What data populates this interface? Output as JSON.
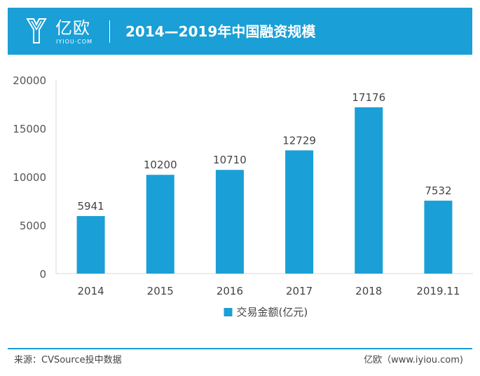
{
  "header": {
    "logo_text": "亿欧",
    "logo_sub": "IYIOU·COM",
    "title": "2014—2019年中国融资规模",
    "brand_color": "#1a9fd6"
  },
  "chart_data": {
    "type": "bar",
    "categories": [
      "2014",
      "2015",
      "2016",
      "2017",
      "2018",
      "2019.11"
    ],
    "series": [
      {
        "name": "交易金额(亿元)",
        "values": [
          5941,
          10200,
          10710,
          12729,
          17176,
          7532
        ],
        "color": "#1a9fd6"
      }
    ],
    "ylim": [
      0,
      20000
    ],
    "yticks": [
      0,
      5000,
      10000,
      15000,
      20000
    ],
    "title": "",
    "xlabel": "",
    "ylabel": "",
    "legend": "bottom-center",
    "grid": false
  },
  "footer": {
    "source": "来源：CVSource投中数据",
    "credit": "亿欧（www.iyiou.com)"
  }
}
